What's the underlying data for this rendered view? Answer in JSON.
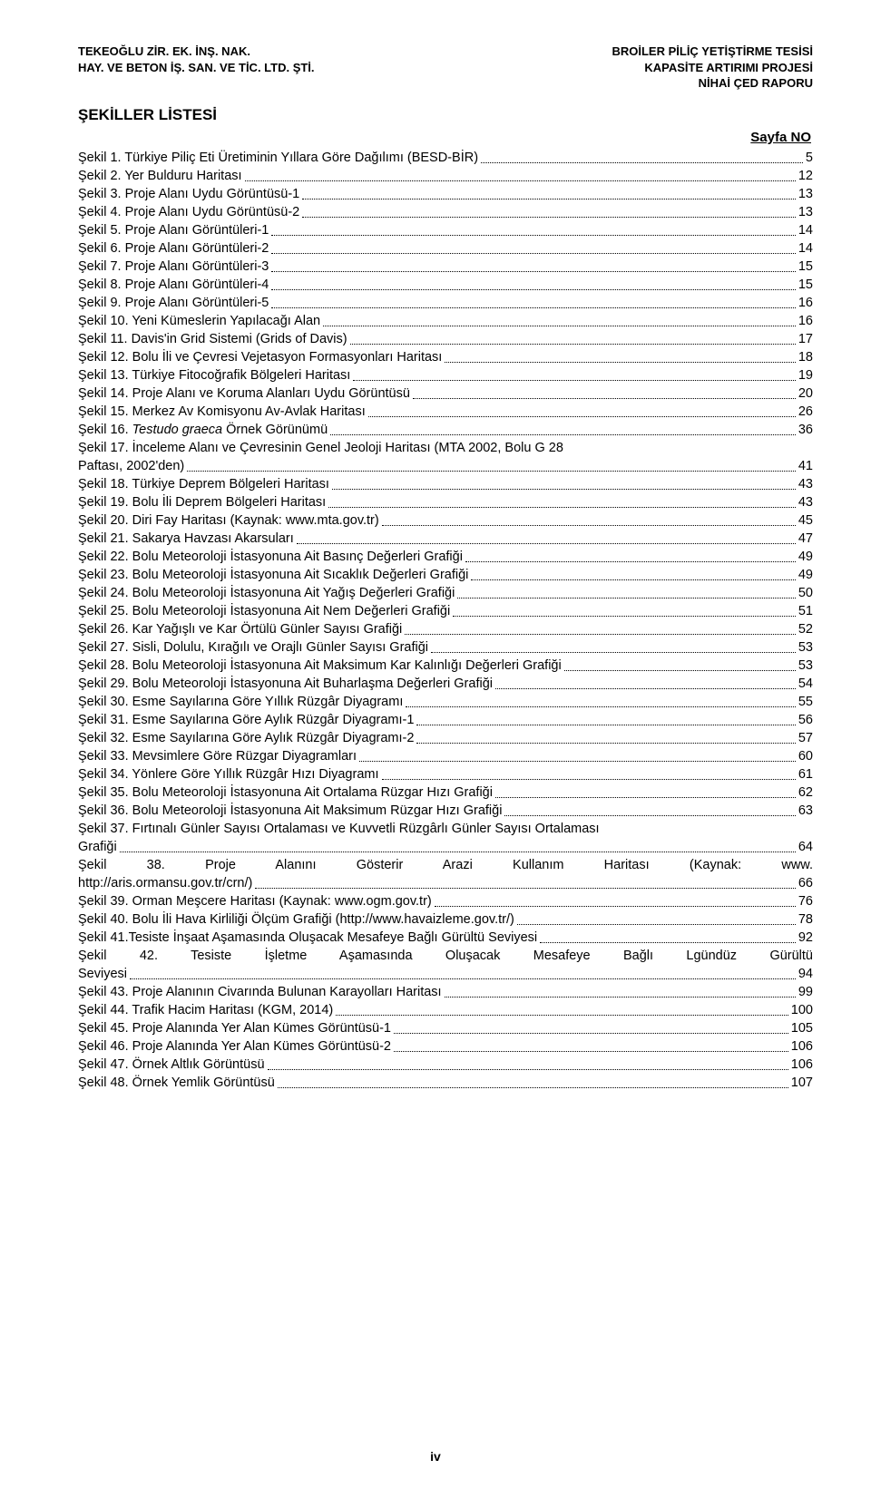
{
  "header": {
    "left1": "TEKEOĞLU ZİR. EK. İNŞ. NAK.",
    "left2": "HAY. VE BETON İŞ. SAN. VE TİC. LTD. ŞTİ.",
    "right1": "BROİLER PİLİÇ YETİŞTİRME TESİSİ",
    "right2": "KAPASİTE ARTIRIMI PROJESİ",
    "right3": "NİHAİ ÇED RAPORU"
  },
  "section_title": "ŞEKİLLER LİSTESİ",
  "page_no_label": "Sayfa NO",
  "footer_page": "iv",
  "entries": [
    {
      "t": "Şekil 1. Türkiye Piliç Eti Üretiminin Yıllara Göre Dağılımı (BESD-BİR)",
      "p": "5"
    },
    {
      "t": "Şekil 2. Yer Bulduru Haritası",
      "p": "12"
    },
    {
      "t": "Şekil 3. Proje Alanı Uydu Görüntüsü-1",
      "p": "13"
    },
    {
      "t": "Şekil 4. Proje Alanı Uydu Görüntüsü-2",
      "p": "13"
    },
    {
      "t": "Şekil 5. Proje Alanı Görüntüleri-1",
      "p": "14"
    },
    {
      "t": "Şekil 6. Proje Alanı Görüntüleri-2",
      "p": "14"
    },
    {
      "t": "Şekil 7. Proje Alanı Görüntüleri-3",
      "p": "15"
    },
    {
      "t": "Şekil 8. Proje Alanı Görüntüleri-4",
      "p": "15"
    },
    {
      "t": "Şekil 9. Proje Alanı Görüntüleri-5",
      "p": "16"
    },
    {
      "t": "Şekil 10. Yeni Kümeslerin Yapılacağı Alan",
      "p": "16"
    },
    {
      "t": "Şekil 11. Davis'in Grid Sistemi (Grids of Davis)",
      "p": "17"
    },
    {
      "t": "Şekil 12. Bolu İli ve Çevresi Vejetasyon Formasyonları Haritası",
      "p": "18"
    },
    {
      "t": "Şekil 13. Türkiye Fitocoğrafik Bölgeleri Haritası",
      "p": "19"
    },
    {
      "t": "Şekil 14. Proje Alanı ve Koruma Alanları Uydu Görüntüsü",
      "p": "20"
    },
    {
      "t": "Şekil 15. Merkez Av Komisyonu Av-Avlak Haritası",
      "p": "26"
    },
    {
      "pre": "Şekil 16. ",
      "italic": "Testudo graeca",
      "post": " Örnek Görünümü",
      "p": "36"
    },
    {
      "multi": true,
      "l1": "Şekil 17. İnceleme Alanı ve Çevresinin Genel Jeoloji Haritası (MTA 2002, Bolu G 28",
      "l2": "Paftası, 2002'den)",
      "p": "41"
    },
    {
      "t": "Şekil 18. Türkiye Deprem Bölgeleri Haritası",
      "p": "43"
    },
    {
      "t": "Şekil 19. Bolu İli Deprem Bölgeleri Haritası",
      "p": "43"
    },
    {
      "t": "Şekil 20. Diri Fay Haritası (Kaynak: www.mta.gov.tr)",
      "p": "45"
    },
    {
      "t": "Şekil 21. Sakarya Havzası Akarsuları",
      "p": "47"
    },
    {
      "t": "Şekil 22. Bolu Meteoroloji İstasyonuna Ait Basınç Değerleri Grafiği",
      "p": "49"
    },
    {
      "t": "Şekil 23. Bolu Meteoroloji İstasyonuna Ait Sıcaklık Değerleri Grafiği",
      "p": "49"
    },
    {
      "t": "Şekil 24. Bolu Meteoroloji İstasyonuna Ait Yağış Değerleri Grafiği",
      "p": "50"
    },
    {
      "t": "Şekil 25. Bolu Meteoroloji İstasyonuna Ait Nem Değerleri Grafiği",
      "p": "51"
    },
    {
      "t": "Şekil 26. Kar Yağışlı ve Kar Örtülü Günler Sayısı Grafiği",
      "p": "52"
    },
    {
      "t": "Şekil 27. Sisli, Dolulu, Kırağılı ve Orajlı Günler Sayısı Grafiği",
      "p": "53"
    },
    {
      "t": "Şekil 28. Bolu Meteoroloji İstasyonuna Ait Maksimum Kar Kalınlığı Değerleri Grafiği",
      "p": "53"
    },
    {
      "t": "Şekil 29. Bolu Meteoroloji İstasyonuna Ait Buharlaşma Değerleri Grafiği",
      "p": "54"
    },
    {
      "t": "Şekil 30. Esme Sayılarına Göre Yıllık Rüzgâr Diyagramı",
      "p": "55"
    },
    {
      "t": "Şekil 31. Esme Sayılarına Göre Aylık Rüzgâr Diyagramı-1",
      "p": "56"
    },
    {
      "t": "Şekil 32. Esme Sayılarına Göre Aylık Rüzgâr Diyagramı-2",
      "p": "57"
    },
    {
      "t": "Şekil 33. Mevsimlere Göre Rüzgar Diyagramları",
      "p": "60"
    },
    {
      "t": "Şekil 34. Yönlere Göre Yıllık Rüzgâr Hızı Diyagramı",
      "p": "61"
    },
    {
      "t": "Şekil 35. Bolu Meteoroloji İstasyonuna Ait Ortalama Rüzgar Hızı Grafiği",
      "p": "62"
    },
    {
      "t": "Şekil 36. Bolu Meteoroloji İstasyonuna Ait Maksimum Rüzgar Hızı Grafiği",
      "p": "63"
    },
    {
      "multi": true,
      "l1": "Şekil 37. Fırtınalı Günler Sayısı Ortalaması ve Kuvvetli Rüzgârlı Günler Sayısı Ortalaması",
      "l2": "Grafiği",
      "p": "64"
    },
    {
      "multi": true,
      "justify": true,
      "l1": "Şekil 38. Proje Alanını Gösterir Arazi Kullanım Haritası (Kaynak: www.",
      "l2": "http://aris.ormansu.gov.tr/crn/)",
      "p": "66"
    },
    {
      "t": "Şekil 39. Orman Meşcere Haritası (Kaynak: www.ogm.gov.tr)",
      "p": "76"
    },
    {
      "t": "Şekil 40. Bolu İli Hava Kirliliği Ölçüm Grafiği (http://www.havaizleme.gov.tr/)",
      "p": "78"
    },
    {
      "t": "Şekil 41.Tesiste İnşaat Aşamasında Oluşacak Mesafeye Bağlı Gürültü Seviyesi",
      "p": "92"
    },
    {
      "multi": true,
      "justify": true,
      "l1": "Şekil 42. Tesiste İşletme Aşamasında Oluşacak Mesafeye Bağlı Lgündüz Gürültü",
      "l2": "Seviyesi",
      "p": "94"
    },
    {
      "t": "Şekil 43. Proje Alanının Civarında Bulunan Karayolları Haritası",
      "p": "99"
    },
    {
      "t": "Şekil 44. Trafik Hacim Haritası (KGM, 2014)",
      "p": "100"
    },
    {
      "t": "Şekil 45. Proje Alanında Yer Alan Kümes Görüntüsü-1",
      "p": "105"
    },
    {
      "t": "Şekil 46. Proje Alanında Yer Alan Kümes Görüntüsü-2",
      "p": "106"
    },
    {
      "t": "Şekil 47. Örnek Altlık Görüntüsü",
      "p": "106"
    },
    {
      "t": "Şekil 48. Örnek Yemlik Görüntüsü",
      "p": "107"
    }
  ]
}
